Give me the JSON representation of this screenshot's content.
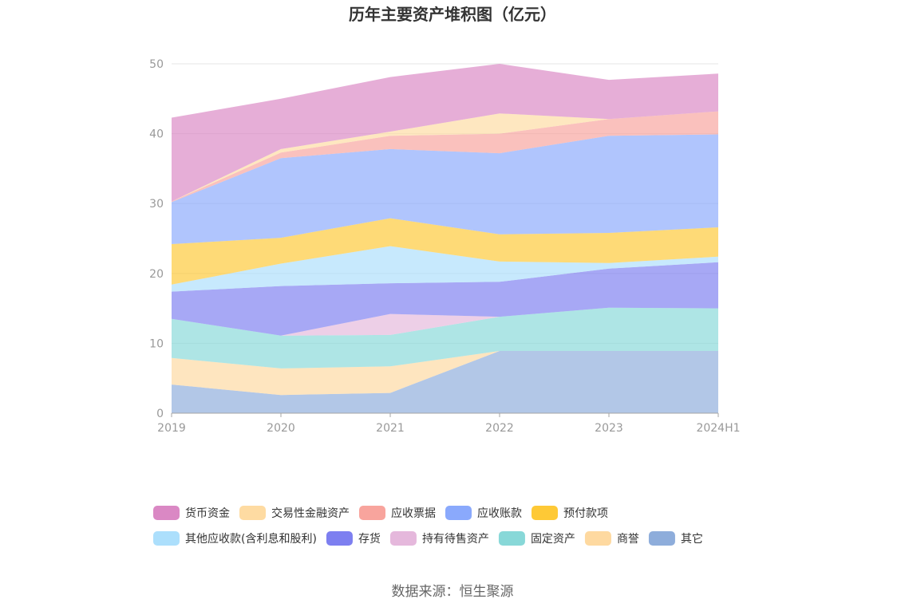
{
  "chart_data": {
    "type": "area",
    "stacked": true,
    "title": "历年主要资产堆积图（亿元）",
    "categories": [
      "2019",
      "2020",
      "2021",
      "2022",
      "2023",
      "2024H1"
    ],
    "ylim": [
      0,
      50
    ],
    "yticks": [
      "0",
      "10",
      "20",
      "30",
      "40",
      "50"
    ],
    "grid": "horizontal",
    "legend_position": "bottom",
    "series": [
      {
        "name": "其它",
        "color": "#8eaddb",
        "values": [
          4.1,
          2.6,
          2.9,
          8.9,
          8.9,
          8.9
        ]
      },
      {
        "name": "商誉",
        "color": "#fed9a0",
        "values": [
          3.8,
          3.8,
          3.8,
          0,
          0,
          0
        ]
      },
      {
        "name": "固定资产",
        "color": "#88d8d8",
        "values": [
          5.6,
          4.7,
          4.5,
          4.9,
          6.2,
          6.1
        ]
      },
      {
        "name": "持有待售资产",
        "color": "#e5b8dc",
        "values": [
          0,
          0,
          3.0,
          0,
          0,
          0
        ]
      },
      {
        "name": "存货",
        "color": "#7d7ff0",
        "values": [
          3.9,
          7.1,
          4.4,
          5.0,
          5.6,
          6.6
        ]
      },
      {
        "name": "其他应收款(含利息和股利)",
        "color": "#acdffc",
        "values": [
          1.0,
          3.2,
          5.3,
          2.9,
          0.8,
          0.8
        ]
      },
      {
        "name": "预付款项",
        "color": "#fec936",
        "values": [
          5.8,
          3.7,
          4.0,
          3.9,
          4.3,
          4.2
        ]
      },
      {
        "name": "应收账款",
        "color": "#8aa9fc",
        "values": [
          6.0,
          11.4,
          9.9,
          11.6,
          13.9,
          13.3
        ]
      },
      {
        "name": "应收票据",
        "color": "#f8a49d",
        "values": [
          0.1,
          0.8,
          1.9,
          2.8,
          2.4,
          3.3
        ]
      },
      {
        "name": "交易性金融资产",
        "color": "#fedba2",
        "values": [
          0,
          0.5,
          0.6,
          2.9,
          0,
          0
        ]
      },
      {
        "name": "货币资金",
        "color": "#da88c4",
        "values": [
          12.0,
          7.2,
          7.8,
          7.1,
          5.6,
          5.4
        ]
      }
    ],
    "legend_order": [
      "货币资金",
      "交易性金融资产",
      "应收票据",
      "应收账款",
      "预付款项",
      "其他应收款(含利息和股利)",
      "存货",
      "持有待售资产",
      "固定资产",
      "商誉",
      "其它"
    ]
  },
  "source": "数据来源：恒生聚源"
}
